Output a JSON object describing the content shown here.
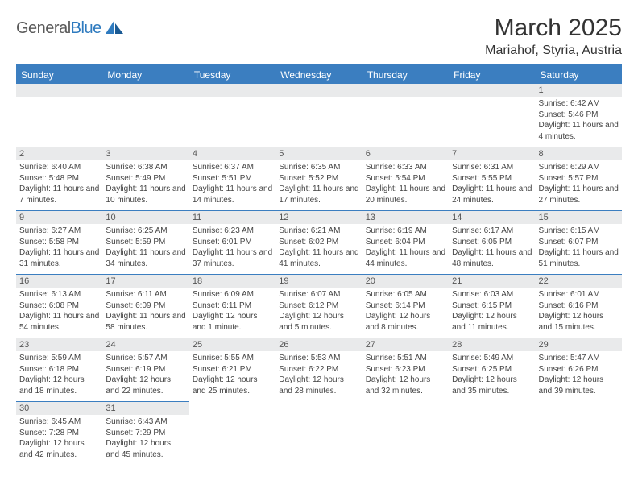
{
  "logo": {
    "general": "General",
    "blue": "Blue"
  },
  "title": "March 2025",
  "location": "Mariahof, Styria, Austria",
  "columns": [
    "Sunday",
    "Monday",
    "Tuesday",
    "Wednesday",
    "Thursday",
    "Friday",
    "Saturday"
  ],
  "colors": {
    "header_bg": "#3b7ec0",
    "header_text": "#ffffff",
    "daynum_bg": "#e9eaeb",
    "empty_bg": "#f3f3f3",
    "accent": "#3b7ec0",
    "logo_blue": "#2f7bbf",
    "logo_gray": "#5a5a5a"
  },
  "weeks": [
    [
      null,
      null,
      null,
      null,
      null,
      null,
      {
        "day": 1,
        "sunrise": "6:42 AM",
        "sunset": "5:46 PM",
        "daylight": "11 hours and 4 minutes."
      }
    ],
    [
      {
        "day": 2,
        "sunrise": "6:40 AM",
        "sunset": "5:48 PM",
        "daylight": "11 hours and 7 minutes."
      },
      {
        "day": 3,
        "sunrise": "6:38 AM",
        "sunset": "5:49 PM",
        "daylight": "11 hours and 10 minutes."
      },
      {
        "day": 4,
        "sunrise": "6:37 AM",
        "sunset": "5:51 PM",
        "daylight": "11 hours and 14 minutes."
      },
      {
        "day": 5,
        "sunrise": "6:35 AM",
        "sunset": "5:52 PM",
        "daylight": "11 hours and 17 minutes."
      },
      {
        "day": 6,
        "sunrise": "6:33 AM",
        "sunset": "5:54 PM",
        "daylight": "11 hours and 20 minutes."
      },
      {
        "day": 7,
        "sunrise": "6:31 AM",
        "sunset": "5:55 PM",
        "daylight": "11 hours and 24 minutes."
      },
      {
        "day": 8,
        "sunrise": "6:29 AM",
        "sunset": "5:57 PM",
        "daylight": "11 hours and 27 minutes."
      }
    ],
    [
      {
        "day": 9,
        "sunrise": "6:27 AM",
        "sunset": "5:58 PM",
        "daylight": "11 hours and 31 minutes."
      },
      {
        "day": 10,
        "sunrise": "6:25 AM",
        "sunset": "5:59 PM",
        "daylight": "11 hours and 34 minutes."
      },
      {
        "day": 11,
        "sunrise": "6:23 AM",
        "sunset": "6:01 PM",
        "daylight": "11 hours and 37 minutes."
      },
      {
        "day": 12,
        "sunrise": "6:21 AM",
        "sunset": "6:02 PM",
        "daylight": "11 hours and 41 minutes."
      },
      {
        "day": 13,
        "sunrise": "6:19 AM",
        "sunset": "6:04 PM",
        "daylight": "11 hours and 44 minutes."
      },
      {
        "day": 14,
        "sunrise": "6:17 AM",
        "sunset": "6:05 PM",
        "daylight": "11 hours and 48 minutes."
      },
      {
        "day": 15,
        "sunrise": "6:15 AM",
        "sunset": "6:07 PM",
        "daylight": "11 hours and 51 minutes."
      }
    ],
    [
      {
        "day": 16,
        "sunrise": "6:13 AM",
        "sunset": "6:08 PM",
        "daylight": "11 hours and 54 minutes."
      },
      {
        "day": 17,
        "sunrise": "6:11 AM",
        "sunset": "6:09 PM",
        "daylight": "11 hours and 58 minutes."
      },
      {
        "day": 18,
        "sunrise": "6:09 AM",
        "sunset": "6:11 PM",
        "daylight": "12 hours and 1 minute."
      },
      {
        "day": 19,
        "sunrise": "6:07 AM",
        "sunset": "6:12 PM",
        "daylight": "12 hours and 5 minutes."
      },
      {
        "day": 20,
        "sunrise": "6:05 AM",
        "sunset": "6:14 PM",
        "daylight": "12 hours and 8 minutes."
      },
      {
        "day": 21,
        "sunrise": "6:03 AM",
        "sunset": "6:15 PM",
        "daylight": "12 hours and 11 minutes."
      },
      {
        "day": 22,
        "sunrise": "6:01 AM",
        "sunset": "6:16 PM",
        "daylight": "12 hours and 15 minutes."
      }
    ],
    [
      {
        "day": 23,
        "sunrise": "5:59 AM",
        "sunset": "6:18 PM",
        "daylight": "12 hours and 18 minutes."
      },
      {
        "day": 24,
        "sunrise": "5:57 AM",
        "sunset": "6:19 PM",
        "daylight": "12 hours and 22 minutes."
      },
      {
        "day": 25,
        "sunrise": "5:55 AM",
        "sunset": "6:21 PM",
        "daylight": "12 hours and 25 minutes."
      },
      {
        "day": 26,
        "sunrise": "5:53 AM",
        "sunset": "6:22 PM",
        "daylight": "12 hours and 28 minutes."
      },
      {
        "day": 27,
        "sunrise": "5:51 AM",
        "sunset": "6:23 PM",
        "daylight": "12 hours and 32 minutes."
      },
      {
        "day": 28,
        "sunrise": "5:49 AM",
        "sunset": "6:25 PM",
        "daylight": "12 hours and 35 minutes."
      },
      {
        "day": 29,
        "sunrise": "5:47 AM",
        "sunset": "6:26 PM",
        "daylight": "12 hours and 39 minutes."
      }
    ],
    [
      {
        "day": 30,
        "sunrise": "6:45 AM",
        "sunset": "7:28 PM",
        "daylight": "12 hours and 42 minutes."
      },
      {
        "day": 31,
        "sunrise": "6:43 AM",
        "sunset": "7:29 PM",
        "daylight": "12 hours and 45 minutes."
      },
      null,
      null,
      null,
      null,
      null
    ]
  ],
  "labels": {
    "sunrise": "Sunrise:",
    "sunset": "Sunset:",
    "daylight": "Daylight:"
  }
}
